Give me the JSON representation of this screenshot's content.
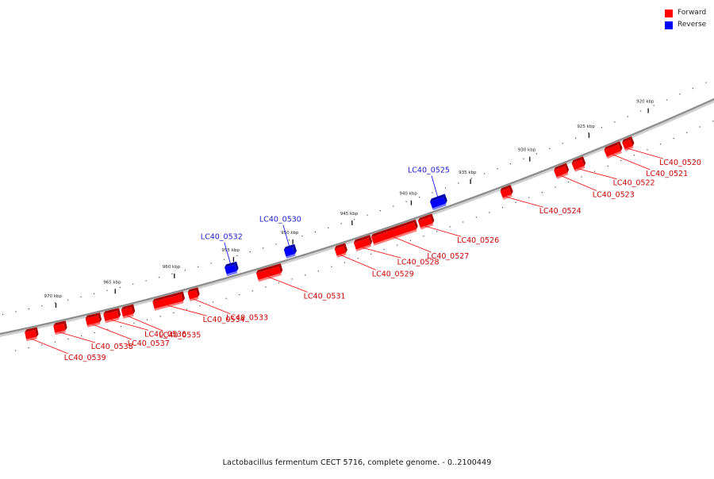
{
  "legend": {
    "forward_label": "Forward",
    "reverse_label": "Reverse"
  },
  "colors": {
    "forward": "#ff0000",
    "forward_dark": "#a80000",
    "forward_light": "#ff7a7a",
    "reverse": "#0000ff",
    "reverse_dark": "#0000a0",
    "reverse_light": "#7a7aff",
    "backbone": "#8c8c8c",
    "forward_text": "#cc0000",
    "reverse_text": "#1a1acc"
  },
  "caption": "Lactobacillus fermentum CECT 5716, complete genome. - 0..2100449",
  "scale": {
    "unit": "kbp",
    "ticks": [
      {
        "label": "920 kbp",
        "kbp": 920
      },
      {
        "label": "925 kbp",
        "kbp": 925
      },
      {
        "label": "930 kbp",
        "kbp": 930
      },
      {
        "label": "935 kbp",
        "kbp": 935
      },
      {
        "label": "940 kbp",
        "kbp": 940
      },
      {
        "label": "945 kbp",
        "kbp": 945
      },
      {
        "label": "950 kbp",
        "kbp": 950
      },
      {
        "label": "955 kbp",
        "kbp": 955
      },
      {
        "label": "960 kbp",
        "kbp": 960
      },
      {
        "label": "965 kbp",
        "kbp": 965
      },
      {
        "label": "970 kbp",
        "kbp": 970
      }
    ]
  },
  "genes": [
    {
      "id": "LC40_0520",
      "strand": "forward",
      "start_kbp": 922.2,
      "end_kbp": 922.8
    },
    {
      "id": "LC40_0521",
      "strand": "forward",
      "start_kbp": 923.1,
      "end_kbp": 924.4
    },
    {
      "id": "LC40_0522",
      "strand": "forward",
      "start_kbp": 926.2,
      "end_kbp": 927.1
    },
    {
      "id": "LC40_0523",
      "strand": "forward",
      "start_kbp": 927.6,
      "end_kbp": 928.6
    },
    {
      "id": "LC40_0524",
      "strand": "forward",
      "start_kbp": 932.3,
      "end_kbp": 933.1
    },
    {
      "id": "LC40_0525",
      "strand": "reverse",
      "start_kbp": 937.4,
      "end_kbp": 938.6
    },
    {
      "id": "LC40_0526",
      "strand": "forward",
      "start_kbp": 938.9,
      "end_kbp": 940.0
    },
    {
      "id": "LC40_0527",
      "strand": "forward",
      "start_kbp": 940.2,
      "end_kbp": 944.0
    },
    {
      "id": "LC40_0528",
      "strand": "forward",
      "start_kbp": 944.1,
      "end_kbp": 945.4
    },
    {
      "id": "LC40_0529",
      "strand": "forward",
      "start_kbp": 946.2,
      "end_kbp": 947.0
    },
    {
      "id": "LC40_0530",
      "strand": "reverse",
      "start_kbp": 950.1,
      "end_kbp": 950.9
    },
    {
      "id": "LC40_0531",
      "strand": "forward",
      "start_kbp": 951.6,
      "end_kbp": 953.6
    },
    {
      "id": "LC40_0532",
      "strand": "reverse",
      "start_kbp": 955.0,
      "end_kbp": 955.9
    },
    {
      "id": "LC40_0533",
      "strand": "forward",
      "start_kbp": 958.6,
      "end_kbp": 959.3
    },
    {
      "id": "LC40_0534",
      "strand": "forward",
      "start_kbp": 959.8,
      "end_kbp": 962.3
    },
    {
      "id": "LC40_0535",
      "strand": "forward",
      "start_kbp": 964.0,
      "end_kbp": 964.9
    },
    {
      "id": "LC40_0536",
      "strand": "forward",
      "start_kbp": 965.2,
      "end_kbp": 966.4
    },
    {
      "id": "LC40_0537",
      "strand": "forward",
      "start_kbp": 966.8,
      "end_kbp": 967.9
    },
    {
      "id": "LC40_0538",
      "strand": "forward",
      "start_kbp": 969.7,
      "end_kbp": 970.6
    },
    {
      "id": "LC40_0539",
      "strand": "forward",
      "start_kbp": 972.1,
      "end_kbp": 973.0
    }
  ]
}
